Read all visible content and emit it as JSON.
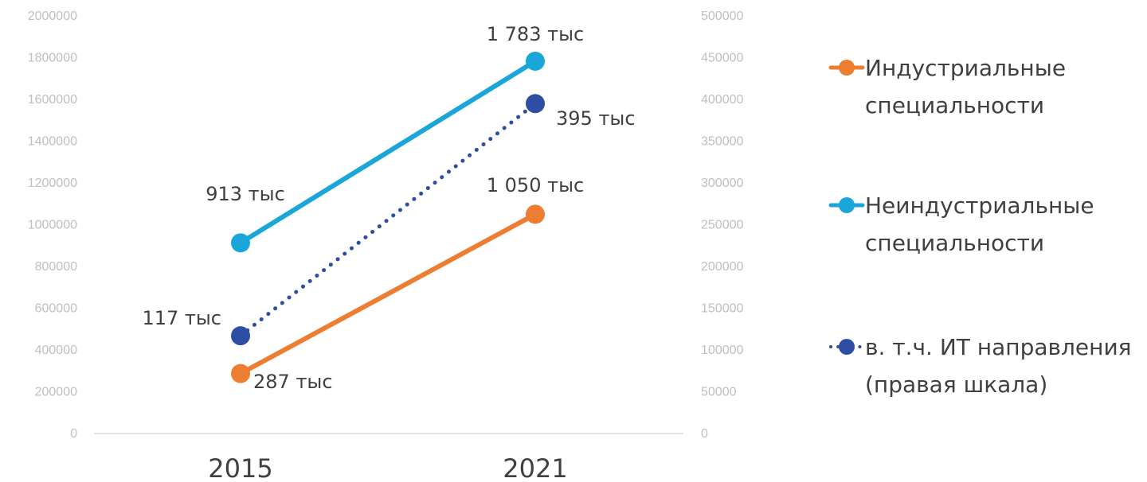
{
  "chart_data": {
    "type": "line",
    "categories": [
      "2015",
      "2021"
    ],
    "left_axis": {
      "ticks": [
        "0",
        "200000",
        "400000",
        "600000",
        "800000",
        "1000000",
        "1200000",
        "1400000",
        "1600000",
        "1800000",
        "2000000"
      ],
      "ylim": [
        0,
        2000000
      ]
    },
    "right_axis": {
      "ticks": [
        "0",
        "50000",
        "100000",
        "150000",
        "200000",
        "250000",
        "300000",
        "350000",
        "400000",
        "450000",
        "500000"
      ],
      "ylim": [
        0,
        500000
      ]
    },
    "series": [
      {
        "name": "Индустриальные специальности",
        "legend_lines": [
          "Индустриальные",
          "специальности"
        ],
        "axis": "left",
        "color": "#ED7D31",
        "style": "solid",
        "values": [
          287000,
          1050000
        ],
        "labels": [
          "287 тыс",
          "1 050 тыс"
        ]
      },
      {
        "name": "Неиндустриальные специальности",
        "legend_lines": [
          "Неиндустриальные",
          "специальности"
        ],
        "axis": "left",
        "color": "#1BA6D9",
        "style": "solid",
        "values": [
          913000,
          1783000
        ],
        "labels": [
          "913 тыс",
          "1 783 тыс"
        ]
      },
      {
        "name": "в. т.ч. ИТ направления (правая шкала)",
        "legend_lines": [
          "в. т.ч. ИТ направления",
          "(правая шкала)"
        ],
        "axis": "right",
        "color": "#2E4EA3",
        "style": "dotted",
        "values": [
          117000,
          395000
        ],
        "labels": [
          "117 тыс",
          "395 тыс"
        ]
      }
    ],
    "grid": false,
    "legend_position": "right"
  }
}
